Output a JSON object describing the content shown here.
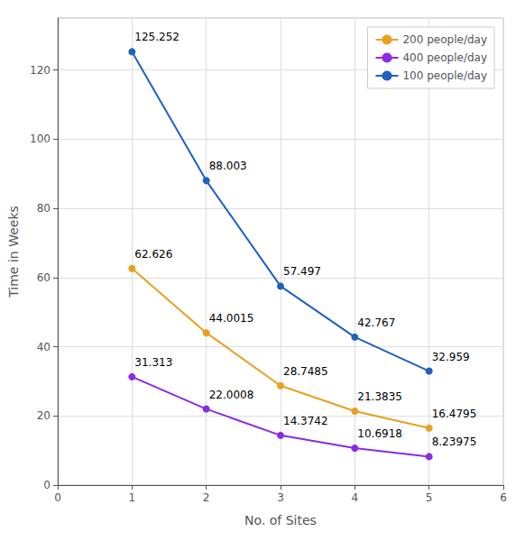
{
  "chart_data": {
    "type": "line",
    "xlabel": "No. of Sites",
    "ylabel": "Time in Weeks",
    "x": [
      1,
      2,
      3,
      4,
      5
    ],
    "series": [
      {
        "name": "200 people/day",
        "color": "#E8A020",
        "values": [
          62.626,
          44.0015,
          28.7485,
          21.3835,
          16.4795
        ]
      },
      {
        "name": "400 people/day",
        "color": "#8B2BE2",
        "values": [
          31.313,
          22.0008,
          14.3742,
          10.6918,
          8.23975
        ]
      },
      {
        "name": "100 people/day",
        "color": "#2060C0",
        "values": [
          125.252,
          88.003,
          57.497,
          42.767,
          32.959
        ]
      }
    ],
    "marker": "circle",
    "xlim": [
      0,
      6
    ],
    "ylim": [
      0,
      135
    ],
    "xticks": [
      0,
      1,
      2,
      3,
      4,
      5,
      6
    ],
    "yticks": [
      0,
      20,
      40,
      60,
      80,
      100,
      120
    ],
    "grid": true,
    "legend": "upper right",
    "data_labels": true
  }
}
